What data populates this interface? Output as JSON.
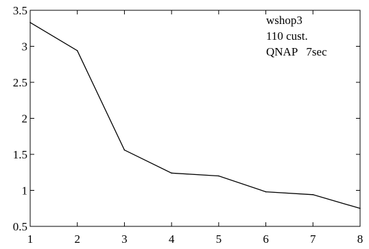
{
  "chart_data": {
    "type": "line",
    "title": "",
    "xlabel": "",
    "ylabel": "",
    "xlim": [
      1,
      8
    ],
    "ylim": [
      0.5,
      3.5
    ],
    "x_ticks": [
      "1",
      "2",
      "3",
      "4",
      "5",
      "6",
      "7",
      "8"
    ],
    "y_ticks": [
      "0.5",
      "1",
      "1.5",
      "2",
      "2.5",
      "3",
      "3.5"
    ],
    "grid": false,
    "legend": "none",
    "series": [
      {
        "x": [
          1,
          2,
          3,
          4,
          5,
          6,
          7,
          8
        ],
        "values": [
          3.33,
          2.94,
          1.56,
          1.24,
          1.2,
          0.98,
          0.94,
          0.75
        ]
      }
    ],
    "annotations": [
      "wshop3",
      "110 cust.",
      "QNAP   7sec"
    ],
    "line_color": "#000000"
  }
}
